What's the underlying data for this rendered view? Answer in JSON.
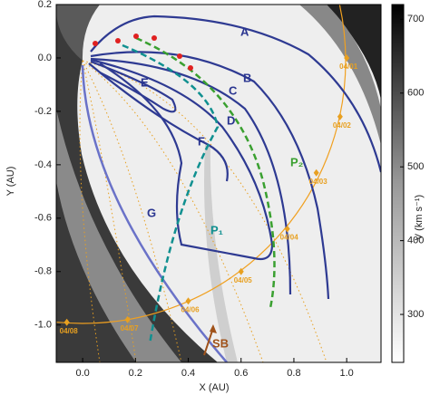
{
  "chart_data": {
    "type": "map",
    "xlabel": "X (AU)",
    "ylabel": "Y (AU)",
    "xlim": [
      -0.1,
      1.13
    ],
    "ylim": [
      -1.14,
      0.2
    ],
    "xticks": [
      {
        "value": 0,
        "label": "0.0"
      },
      0.2,
      0.4,
      0.6,
      0.8,
      {
        "value": 1,
        "label": "1.0"
      }
    ],
    "yticks": [
      0.2,
      {
        "value": 0,
        "label": "0.0"
      },
      -0.2,
      -0.4,
      -0.6,
      -0.8,
      {
        "value": -1,
        "label": "-1.0"
      }
    ],
    "colorbar": {
      "label": "V (km s⁻¹)",
      "lim": [
        235,
        720
      ],
      "ticks": [
        300,
        400,
        500,
        600,
        700
      ]
    },
    "dates": {
      "color": "#e8a020",
      "labels": [
        "04/01",
        "04/02",
        "04/03",
        "04/04",
        "04/05",
        "04/06",
        "04/07",
        "04/08"
      ],
      "x": [
        1.0,
        0.975,
        0.885,
        0.775,
        0.6,
        0.4,
        0.17,
        -0.06
      ],
      "y": [
        0.0,
        -0.22,
        -0.43,
        -0.64,
        -0.8,
        -0.91,
        -0.98,
        -0.99
      ]
    },
    "curve_labels": [
      "A",
      "B",
      "C",
      "D",
      "E",
      "F",
      "G",
      "P₁",
      "P₂"
    ],
    "annotation": "SB"
  }
}
